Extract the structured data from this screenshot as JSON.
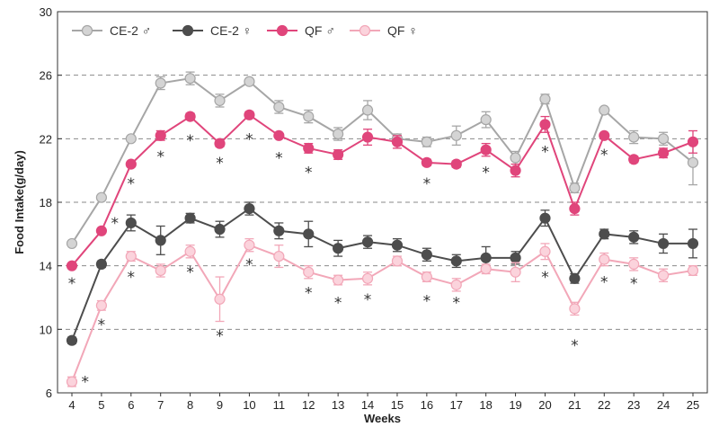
{
  "chart_data": {
    "type": "line",
    "xlabel": "Weeks",
    "ylabel": "Food Intake(g/day)",
    "x": [
      4,
      5,
      6,
      7,
      8,
      9,
      10,
      11,
      12,
      13,
      14,
      15,
      16,
      17,
      18,
      19,
      20,
      21,
      22,
      23,
      24,
      25
    ],
    "x_tick_labels": [
      "4",
      "5",
      "6",
      "7",
      "8",
      "9",
      "10",
      "11",
      "12",
      "13",
      "14",
      "15",
      "16",
      "17",
      "18",
      "19",
      "20",
      "21",
      "22",
      "23",
      "24",
      "25"
    ],
    "ylim": [
      6,
      30
    ],
    "y_ticks": [
      6,
      10,
      14,
      18,
      22,
      26,
      30
    ],
    "y_tick_labels": [
      "6",
      "10",
      "14",
      "18",
      "22",
      "26",
      "30"
    ],
    "grid": "dashed horizontal at 10, 14, 18, 22, 26",
    "legend_position": "top-left",
    "series": [
      {
        "name": "CE-2 ♂",
        "color": "#a6a6a6",
        "marker_fill": "#d4d4d4",
        "values": [
          15.4,
          18.3,
          22.0,
          25.5,
          25.8,
          24.4,
          25.6,
          24.0,
          23.4,
          22.3,
          23.8,
          22.0,
          21.8,
          22.2,
          23.2,
          20.8,
          24.5,
          18.9,
          23.8,
          22.1,
          22.0,
          20.5
        ],
        "errors": [
          0.1,
          0.1,
          0.1,
          0.4,
          0.4,
          0.4,
          0.1,
          0.4,
          0.4,
          0.4,
          0.6,
          0.3,
          0.3,
          0.6,
          0.5,
          0.4,
          0.3,
          0.3,
          0.1,
          0.4,
          0.4,
          1.4
        ]
      },
      {
        "name": "CE-2 ♀",
        "color": "#4d4d4d",
        "marker_fill": "#4d4d4d",
        "values": [
          9.3,
          14.1,
          16.7,
          15.6,
          17.0,
          16.3,
          17.6,
          16.2,
          16.0,
          15.1,
          15.5,
          15.3,
          14.7,
          14.3,
          14.5,
          14.5,
          17.0,
          13.2,
          16.0,
          15.8,
          15.4,
          15.4
        ],
        "errors": [
          0.2,
          0.2,
          0.5,
          0.9,
          0.3,
          0.5,
          0.4,
          0.5,
          0.8,
          0.5,
          0.4,
          0.4,
          0.4,
          0.4,
          0.7,
          0.4,
          0.5,
          0.3,
          0.3,
          0.4,
          0.6,
          0.9
        ]
      },
      {
        "name": "QF ♂",
        "color": "#e0457b",
        "marker_fill": "#e0457b",
        "values": [
          14.0,
          16.2,
          20.4,
          22.2,
          23.4,
          21.7,
          23.5,
          22.2,
          21.4,
          21.0,
          22.1,
          21.8,
          20.5,
          20.4,
          21.3,
          20.0,
          22.9,
          17.6,
          22.2,
          20.7,
          21.1,
          21.8
        ],
        "errors": [
          0.1,
          0.1,
          0.1,
          0.3,
          0.2,
          0.2,
          0.2,
          0.1,
          0.3,
          0.3,
          0.5,
          0.4,
          0.2,
          0.2,
          0.4,
          0.4,
          0.5,
          0.4,
          0.1,
          0.2,
          0.3,
          0.7
        ]
      },
      {
        "name": "QF ♀",
        "color": "#f2a7b8",
        "marker_fill": "#fbd3dc",
        "values": [
          6.7,
          11.5,
          14.6,
          13.7,
          14.9,
          11.9,
          15.3,
          14.6,
          13.6,
          13.1,
          13.2,
          14.3,
          13.3,
          12.8,
          13.8,
          13.6,
          14.9,
          11.3,
          14.4,
          14.1,
          13.4,
          13.7
        ],
        "errors": [
          0.3,
          0.3,
          0.3,
          0.4,
          0.4,
          1.4,
          0.4,
          0.7,
          0.4,
          0.3,
          0.4,
          0.3,
          0.3,
          0.4,
          0.3,
          0.6,
          0.5,
          0.4,
          0.4,
          0.4,
          0.4,
          0.3
        ]
      }
    ],
    "annotations": [
      {
        "text": "*",
        "x": 4,
        "y": 12.9
      },
      {
        "text": "*",
        "x": 4.45,
        "y": 6.7
      },
      {
        "text": "*",
        "x": 5.45,
        "y": 16.7
      },
      {
        "text": "*",
        "x": 5.0,
        "y": 10.3
      },
      {
        "text": "*",
        "x": 6.0,
        "y": 19.2
      },
      {
        "text": "*",
        "x": 6.0,
        "y": 13.3
      },
      {
        "text": "*",
        "x": 7.0,
        "y": 20.9
      },
      {
        "text": "*",
        "x": 8.0,
        "y": 21.9
      },
      {
        "text": "*",
        "x": 8.0,
        "y": 13.6
      },
      {
        "text": "*",
        "x": 9.0,
        "y": 20.5
      },
      {
        "text": "*",
        "x": 9.0,
        "y": 9.6
      },
      {
        "text": "*",
        "x": 10.0,
        "y": 22.0
      },
      {
        "text": "*",
        "x": 10.0,
        "y": 14.1
      },
      {
        "text": "*",
        "x": 11.0,
        "y": 20.8
      },
      {
        "text": "*",
        "x": 12.0,
        "y": 19.9
      },
      {
        "text": "*",
        "x": 12.0,
        "y": 12.3
      },
      {
        "text": "*",
        "x": 13.0,
        "y": 11.7
      },
      {
        "text": "*",
        "x": 14.0,
        "y": 11.9
      },
      {
        "text": "*",
        "x": 16.0,
        "y": 19.2
      },
      {
        "text": "*",
        "x": 16.0,
        "y": 11.8
      },
      {
        "text": "*",
        "x": 17.0,
        "y": 11.7
      },
      {
        "text": "*",
        "x": 18.0,
        "y": 19.9
      },
      {
        "text": "*",
        "x": 20.0,
        "y": 21.2
      },
      {
        "text": "*",
        "x": 20.0,
        "y": 13.3
      },
      {
        "text": "*",
        "x": 21.0,
        "y": 9.0
      },
      {
        "text": "*",
        "x": 22.0,
        "y": 21.0
      },
      {
        "text": "*",
        "x": 22.0,
        "y": 13.0
      },
      {
        "text": "*",
        "x": 23.0,
        "y": 12.9
      }
    ]
  }
}
